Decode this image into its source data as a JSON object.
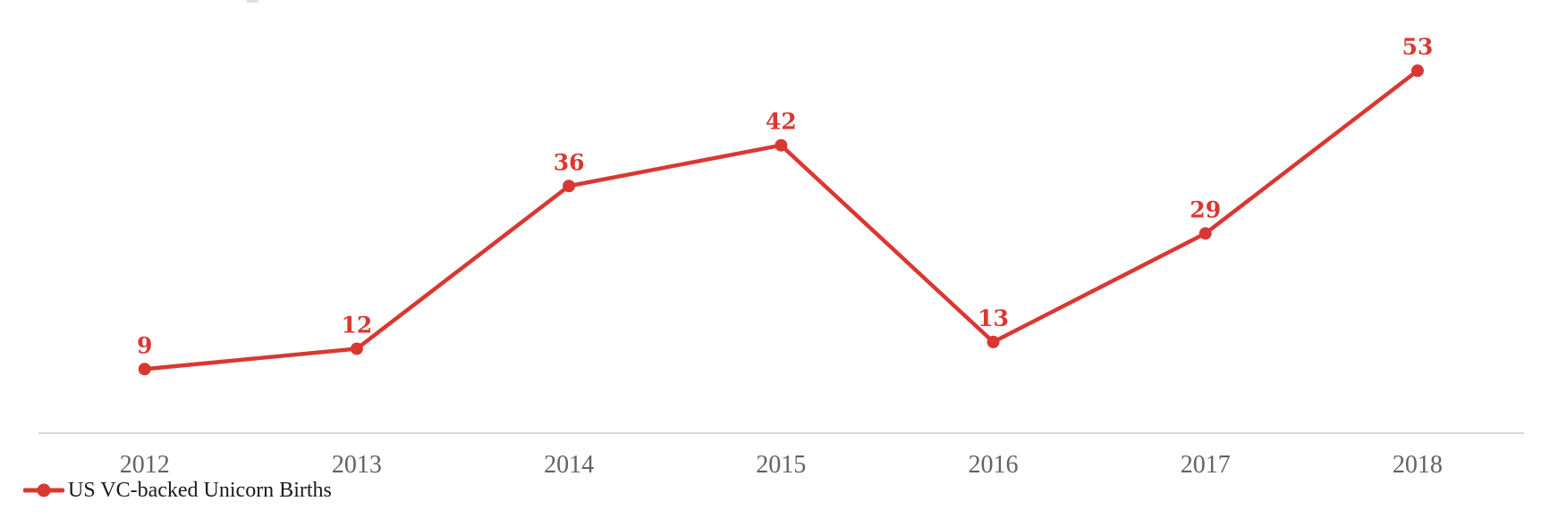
{
  "chart_data": {
    "type": "line",
    "title": "",
    "xlabel": "",
    "ylabel": "",
    "categories": [
      "2012",
      "2013",
      "2014",
      "2015",
      "2016",
      "2017",
      "2018"
    ],
    "series": [
      {
        "name": "US VC-backed Unicorn Births",
        "values": [
          9,
          12,
          36,
          42,
          13,
          29,
          53
        ]
      }
    ],
    "data_labels_shown": true,
    "grid": false,
    "y_axis_shown": false,
    "y_baseline": 0,
    "legend_position": "bottom-left",
    "colors": {
      "series": "#d93832",
      "data_label": "#d93832",
      "axis_line": "#d9d9d9",
      "tick_label": "#5f6368",
      "legend_text": "#1a1a1a"
    }
  }
}
